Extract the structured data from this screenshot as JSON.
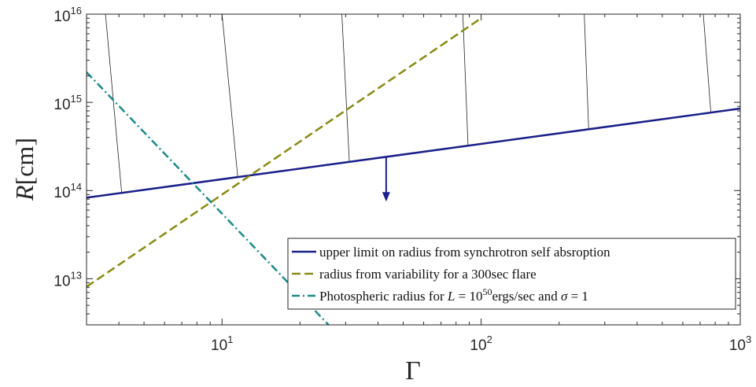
{
  "chart_data": {
    "type": "line",
    "x_scale": "log",
    "y_scale": "log",
    "xlim": [
      3,
      1000
    ],
    "ylim": [
      3000000000000.0,
      1e+16
    ],
    "grid": false,
    "legend_position": "bottom-right",
    "xlabel": "Γ",
    "ylabel_italic": "R",
    "ylabel_unit": "[cm]",
    "x_ticks": [
      {
        "value": 10,
        "base": "10",
        "exp": "1"
      },
      {
        "value": 100,
        "base": "10",
        "exp": "2"
      },
      {
        "value": 1000,
        "base": "10",
        "exp": "3"
      }
    ],
    "y_ticks": [
      {
        "value": 10000000000000.0,
        "base": "10",
        "exp": "13"
      },
      {
        "value": 100000000000000.0,
        "base": "10",
        "exp": "14"
      },
      {
        "value": 1000000000000000.0,
        "base": "10",
        "exp": "15"
      },
      {
        "value": 1e+16,
        "base": "10",
        "exp": "16"
      }
    ],
    "series": [
      {
        "name": "upper limit on radius from synchrotron self absroption",
        "style": "solid",
        "color": "#1a1f8a",
        "x": [
          3,
          1000
        ],
        "y": [
          83000000000000.0,
          850000000000000.0
        ]
      },
      {
        "name": "radius from variability for a 300sec flare",
        "style": "dashed",
        "color": "#8a8a14",
        "x": [
          3,
          100
        ],
        "y": [
          8100000000000.0,
          9000000000000000.0
        ]
      },
      {
        "name": "Photospheric radius for L = 10^50 ergs/sec and σ = 1",
        "style": "dashdot",
        "color": "#1a8a8a",
        "x": [
          3,
          27
        ],
        "y": [
          2200000000000000.0,
          2600000000000.0
        ]
      }
    ],
    "hatch_lines": [
      {
        "x_top": 3.55,
        "x_bottom": 4.1
      },
      {
        "x_top": 10.0,
        "x_bottom": 11.5
      },
      {
        "x_top": 29.0,
        "x_bottom": 31.0
      },
      {
        "x_top": 85.0,
        "x_bottom": 89.0
      },
      {
        "x_top": 250.0,
        "x_bottom": 260.0
      },
      {
        "x_top": 720.0,
        "x_bottom": 770.0
      }
    ],
    "arrow": {
      "x": 43,
      "y_start": 240000000000000.0,
      "y_end": 75000000000000.0,
      "color": "#1a1f8a"
    },
    "legend": [
      {
        "series": 0,
        "text": "upper limit on radius from synchrotron self absroption"
      },
      {
        "series": 1,
        "text": "radius from variability for a 300sec flare"
      },
      {
        "series": 2,
        "text_before": "Photospheric radius for ",
        "math_L": "L",
        "text_eq": " = 10",
        "sup": "50",
        "text_after": "ergs/sec and ",
        "math_sigma": "σ",
        "text_end": " = 1"
      }
    ]
  }
}
